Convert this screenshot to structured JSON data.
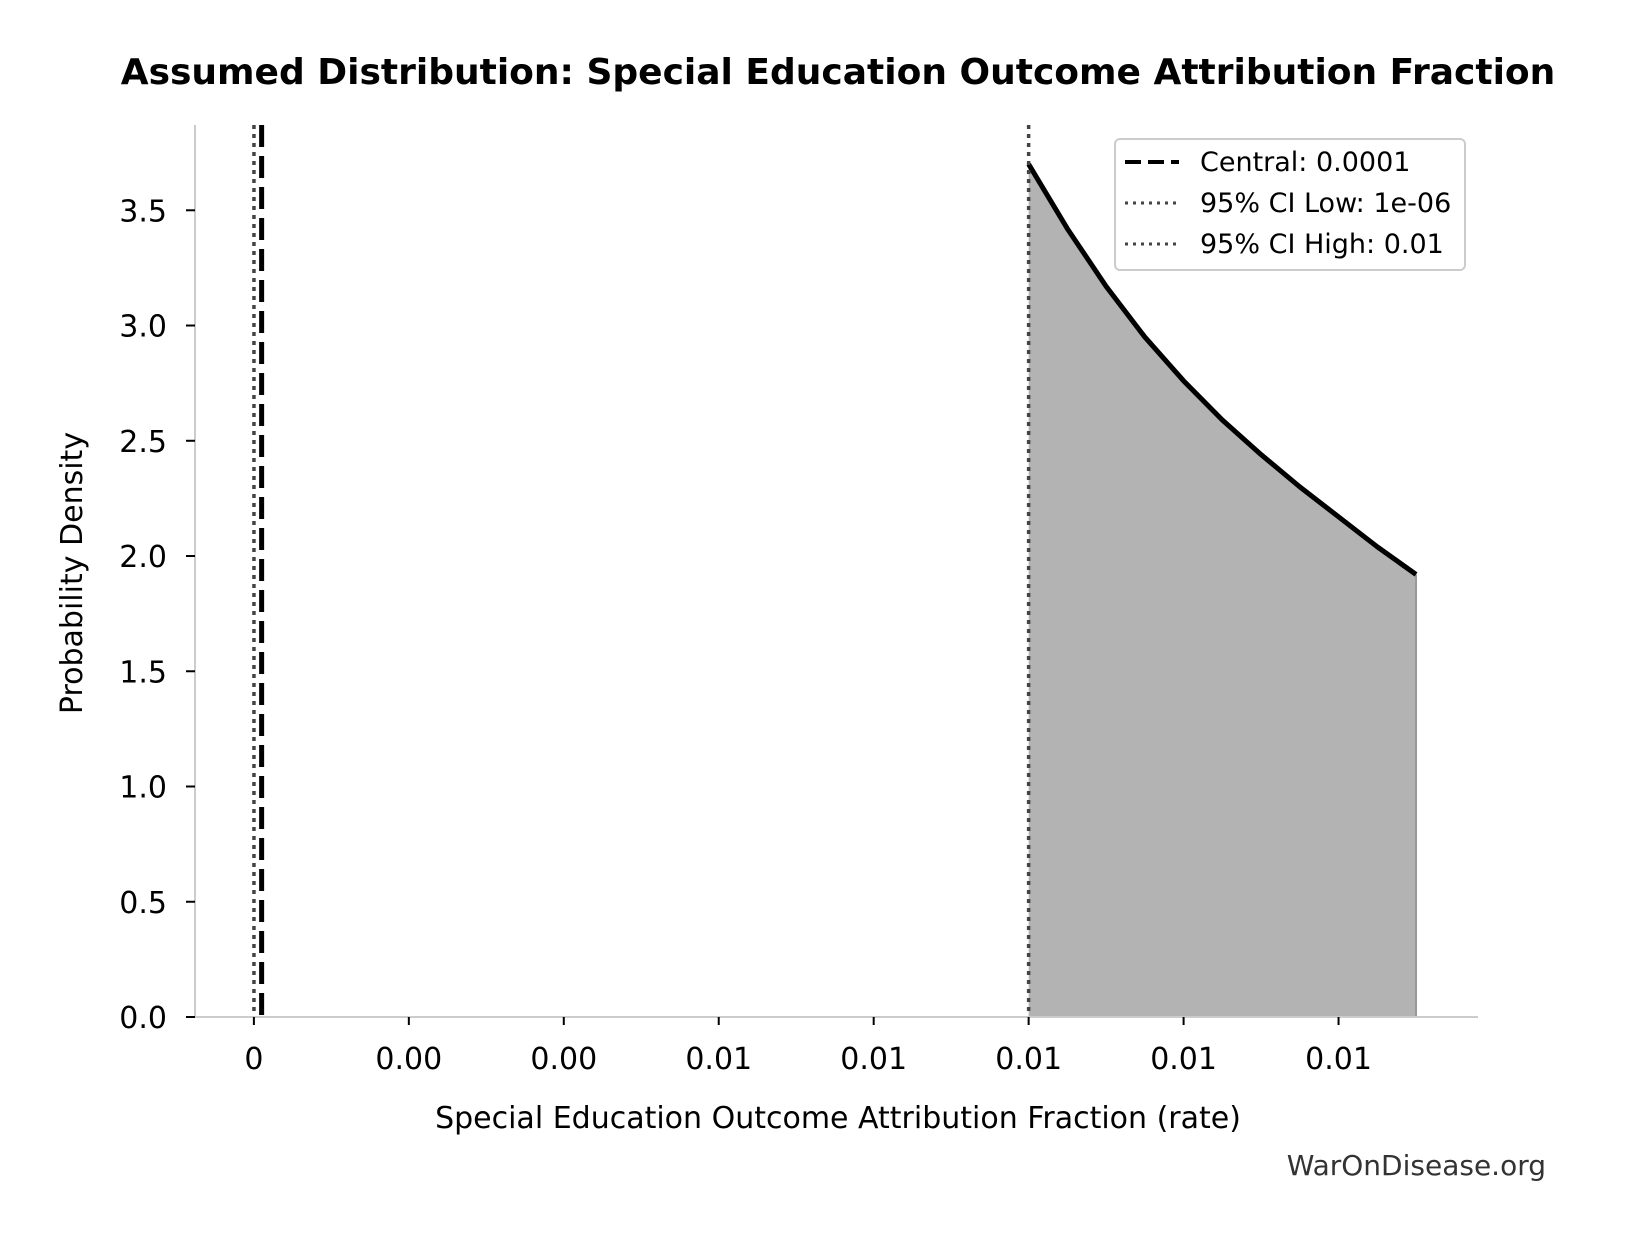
{
  "chart_data": {
    "type": "area",
    "title": "Assumed Distribution: Special Education Outcome Attribution Fraction",
    "xlabel": "Special Education Outcome Attribution Fraction (rate)",
    "ylabel": "Probability Density",
    "xlim": [
      -0.00076,
      0.0158
    ],
    "ylim": [
      0,
      3.87
    ],
    "x_ticks": [
      0,
      0.002,
      0.004,
      0.006,
      0.008,
      0.01,
      0.012,
      0.014
    ],
    "x_tick_labels": [
      "0",
      "0.00",
      "0.00",
      "0.01",
      "0.01",
      "0.01",
      "0.01",
      "0.01"
    ],
    "y_ticks": [
      0,
      0.5,
      1.0,
      1.5,
      2.0,
      2.5,
      3.0,
      3.5
    ],
    "y_tick_labels": [
      "0.0",
      "0.5",
      "1.0",
      "1.5",
      "2.0",
      "2.5",
      "3.0",
      "3.5"
    ],
    "grid": false,
    "legend_position": "top-right",
    "series": [
      {
        "x": [
          0.01,
          0.0105,
          0.011,
          0.0115,
          0.012,
          0.0125,
          0.013,
          0.0135,
          0.014,
          0.0145,
          0.015
        ],
        "y": [
          3.7,
          3.42,
          3.17,
          2.95,
          2.76,
          2.59,
          2.44,
          2.3,
          2.17,
          2.04,
          1.92
        ]
      }
    ],
    "reference_lines": [
      {
        "label": "Central: 0.0001",
        "x": 0.0001,
        "style": "dashed",
        "color": "#000000"
      },
      {
        "label": "95% CI Low: 1e-06",
        "x": 1e-06,
        "style": "dotted",
        "color": "#444444"
      },
      {
        "label": "95% CI High: 0.01",
        "x": 0.01,
        "style": "dotted",
        "color": "#444444"
      }
    ],
    "colors": {
      "line": "#000000",
      "fill": "#b3b3b3",
      "axis": "#cccccc"
    }
  },
  "watermark": "WarOnDisease.org"
}
